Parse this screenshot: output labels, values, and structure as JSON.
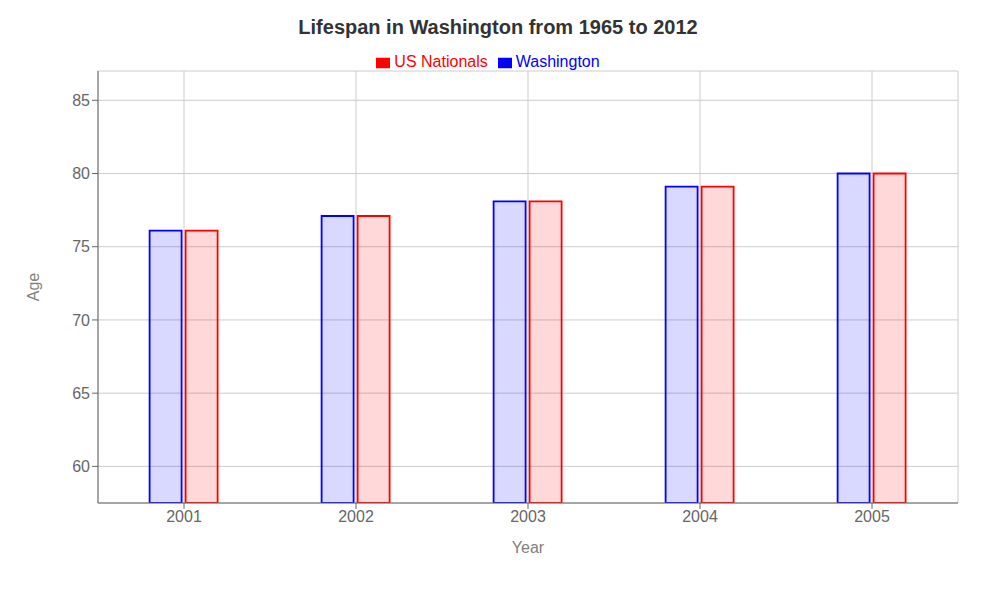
{
  "chart_data": {
    "type": "bar",
    "title": "Lifespan in Washington from 1965 to 2012",
    "x_label": "Year",
    "y_label": "Age",
    "categories": [
      "2001",
      "2002",
      "2003",
      "2004",
      "2005"
    ],
    "series": [
      {
        "name": "Washington",
        "color": "#0000ff",
        "values": [
          76.1,
          77.1,
          78.1,
          79.1,
          80.0
        ]
      },
      {
        "name": "US Nationals",
        "color": "#ff0000",
        "values": [
          76.1,
          77.1,
          78.1,
          79.1,
          80.0
        ]
      }
    ],
    "ylim": [
      57.5,
      87
    ],
    "yticks": [
      60,
      65,
      70,
      75,
      80,
      85
    ],
    "grid": true,
    "legend": "top"
  }
}
